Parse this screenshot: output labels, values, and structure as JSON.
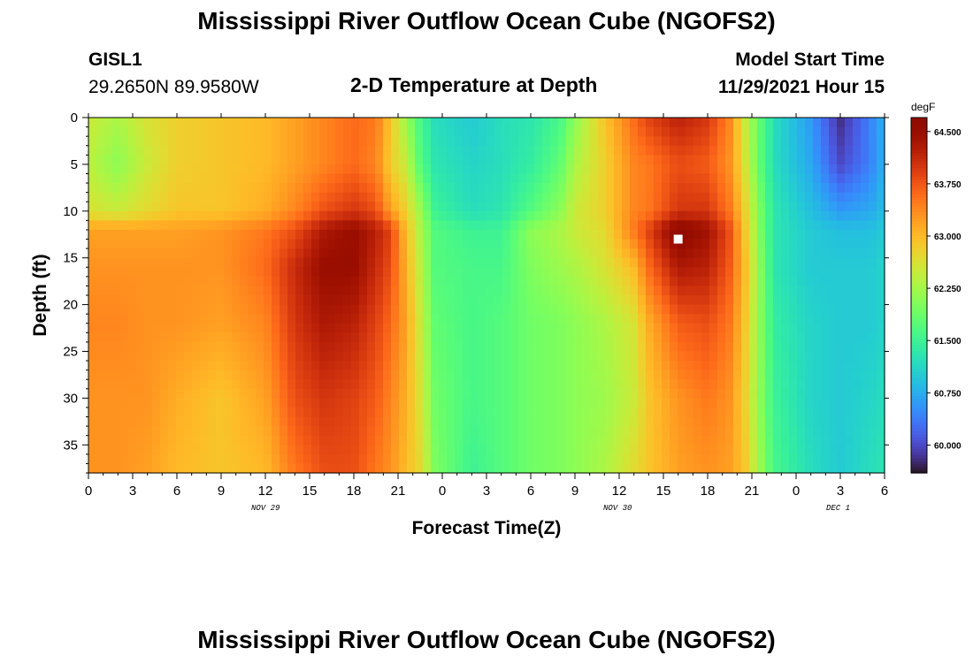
{
  "page": {
    "title": "Mississippi River Outflow Ocean Cube (NGOFS2)",
    "title_repeat": "Mississippi River Outflow Ocean Cube (NGOFS2)"
  },
  "header": {
    "station": "GISL1",
    "coords": "29.2650N  89.9580W",
    "subtitle": "2-D Temperature at Depth",
    "model_start_label": "Model Start Time",
    "model_start_value": "11/29/2021 Hour 15"
  },
  "chart_data": {
    "type": "heatmap",
    "title": "2-D Temperature at Depth",
    "xlabel": "Forecast Time(Z)",
    "ylabel": "Depth (ft)",
    "x_range_hours": [
      0,
      54
    ],
    "y_range_ft": [
      0,
      38
    ],
    "x_tick_labels": [
      "0",
      "3",
      "6",
      "9",
      "12",
      "15",
      "18",
      "21",
      "0",
      "3",
      "6",
      "9",
      "12",
      "15",
      "18",
      "21",
      "0",
      "3",
      "6"
    ],
    "y_tick_labels": [
      "0",
      "5",
      "10",
      "15",
      "20",
      "25",
      "30",
      "35"
    ],
    "day_labels": [
      "NOV 29",
      "NOV 30",
      "DEC 1"
    ],
    "colorbar": {
      "unit": "degF",
      "min": 59.6,
      "max": 64.7,
      "tick_labels": [
        "64.500",
        "63.750",
        "63.000",
        "62.250",
        "61.500",
        "60.750",
        "60.000"
      ],
      "colormap": "turbo"
    },
    "marker": {
      "hour": 40,
      "depth_ft": 13,
      "color": "#ffffff"
    },
    "depth_profile_ft": [
      0,
      5,
      10,
      12,
      16,
      22,
      30,
      38
    ],
    "columns": [
      {
        "hour": 0,
        "temps": [
          62.5,
          62.4,
          62.6,
          63.2,
          63.3,
          63.4,
          63.3,
          63.3
        ]
      },
      {
        "hour": 2,
        "temps": [
          62.3,
          62.1,
          62.5,
          63.2,
          63.3,
          63.4,
          63.3,
          63.3
        ]
      },
      {
        "hour": 4,
        "temps": [
          62.6,
          62.5,
          62.7,
          63.2,
          63.3,
          63.3,
          63.3,
          63.2
        ]
      },
      {
        "hour": 6,
        "temps": [
          62.8,
          62.8,
          62.9,
          63.2,
          63.3,
          63.3,
          63.1,
          63.0
        ]
      },
      {
        "hour": 9,
        "temps": [
          62.9,
          62.9,
          62.9,
          63.3,
          63.3,
          63.2,
          62.9,
          62.9
        ]
      },
      {
        "hour": 12,
        "temps": [
          63.0,
          63.0,
          63.1,
          63.5,
          63.6,
          63.4,
          63.2,
          63.0
        ]
      },
      {
        "hour": 14,
        "temps": [
          63.2,
          63.2,
          63.4,
          63.8,
          64.1,
          64.0,
          63.8,
          63.5
        ]
      },
      {
        "hour": 16,
        "temps": [
          63.4,
          63.4,
          63.8,
          64.3,
          64.5,
          64.3,
          64.0,
          63.8
        ]
      },
      {
        "hour": 18,
        "temps": [
          63.6,
          63.6,
          64.0,
          64.5,
          64.5,
          64.2,
          63.9,
          63.8
        ]
      },
      {
        "hour": 19.5,
        "temps": [
          63.5,
          63.4,
          63.8,
          64.2,
          64.1,
          63.9,
          63.7,
          63.5
        ]
      },
      {
        "hour": 20.5,
        "temps": [
          62.9,
          62.8,
          63.2,
          63.9,
          63.8,
          63.6,
          63.4,
          63.3
        ]
      },
      {
        "hour": 21.5,
        "temps": [
          62.2,
          62.5,
          62.8,
          63.0,
          63.1,
          63.2,
          63.1,
          63.0
        ]
      },
      {
        "hour": 22.5,
        "temps": [
          61.6,
          61.7,
          62.2,
          62.3,
          62.4,
          62.5,
          62.6,
          62.7
        ]
      },
      {
        "hour": 23.5,
        "temps": [
          61.2,
          61.3,
          61.5,
          61.7,
          61.7,
          61.8,
          61.9,
          62.0
        ]
      },
      {
        "hour": 26,
        "temps": [
          61.0,
          61.1,
          61.2,
          61.5,
          61.6,
          61.6,
          61.6,
          61.5
        ]
      },
      {
        "hour": 28,
        "temps": [
          61.2,
          61.2,
          61.3,
          61.5,
          61.6,
          61.7,
          61.7,
          61.7
        ]
      },
      {
        "hour": 30,
        "temps": [
          61.3,
          61.4,
          61.7,
          62.1,
          62.0,
          61.9,
          61.9,
          61.9
        ]
      },
      {
        "hour": 32,
        "temps": [
          61.6,
          61.8,
          62.1,
          62.3,
          62.2,
          62.0,
          62.0,
          62.0
        ]
      },
      {
        "hour": 33,
        "temps": [
          62.1,
          62.3,
          62.5,
          62.5,
          62.3,
          62.1,
          62.1,
          62.1
        ]
      },
      {
        "hour": 35,
        "temps": [
          62.9,
          62.8,
          62.8,
          62.7,
          62.6,
          62.3,
          62.2,
          62.3
        ]
      },
      {
        "hour": 37,
        "temps": [
          63.6,
          63.4,
          63.4,
          63.5,
          63.0,
          62.6,
          62.5,
          62.7
        ]
      },
      {
        "hour": 38,
        "temps": [
          63.9,
          63.5,
          63.5,
          63.9,
          63.6,
          63.1,
          62.9,
          62.9
        ]
      },
      {
        "hour": 40,
        "temps": [
          64.2,
          63.8,
          64.0,
          64.7,
          64.3,
          63.7,
          63.3,
          63.2
        ]
      },
      {
        "hour": 42,
        "temps": [
          64.0,
          63.7,
          64.0,
          64.4,
          64.2,
          63.8,
          63.5,
          63.3
        ]
      },
      {
        "hour": 43.5,
        "temps": [
          63.4,
          63.3,
          63.5,
          63.8,
          63.7,
          63.5,
          63.3,
          63.2
        ]
      },
      {
        "hour": 44.5,
        "temps": [
          62.5,
          62.6,
          62.8,
          62.9,
          63.0,
          62.9,
          62.8,
          62.9
        ]
      },
      {
        "hour": 45.5,
        "temps": [
          61.8,
          61.8,
          62.0,
          62.0,
          62.1,
          62.1,
          62.1,
          62.2
        ]
      },
      {
        "hour": 46.5,
        "temps": [
          61.2,
          61.2,
          61.3,
          61.3,
          61.3,
          61.4,
          61.5,
          61.6
        ]
      },
      {
        "hour": 49,
        "temps": [
          60.6,
          60.7,
          60.9,
          61.0,
          61.0,
          61.1,
          61.1,
          61.2
        ]
      },
      {
        "hour": 51,
        "temps": [
          59.8,
          60.0,
          60.6,
          60.9,
          61.0,
          61.0,
          61.0,
          61.0
        ]
      },
      {
        "hour": 53,
        "temps": [
          60.4,
          60.4,
          60.7,
          60.9,
          61.0,
          61.0,
          61.1,
          61.2
        ]
      },
      {
        "hour": 54,
        "temps": [
          60.8,
          60.8,
          60.9,
          61.0,
          61.1,
          61.1,
          61.2,
          61.3
        ]
      }
    ]
  }
}
